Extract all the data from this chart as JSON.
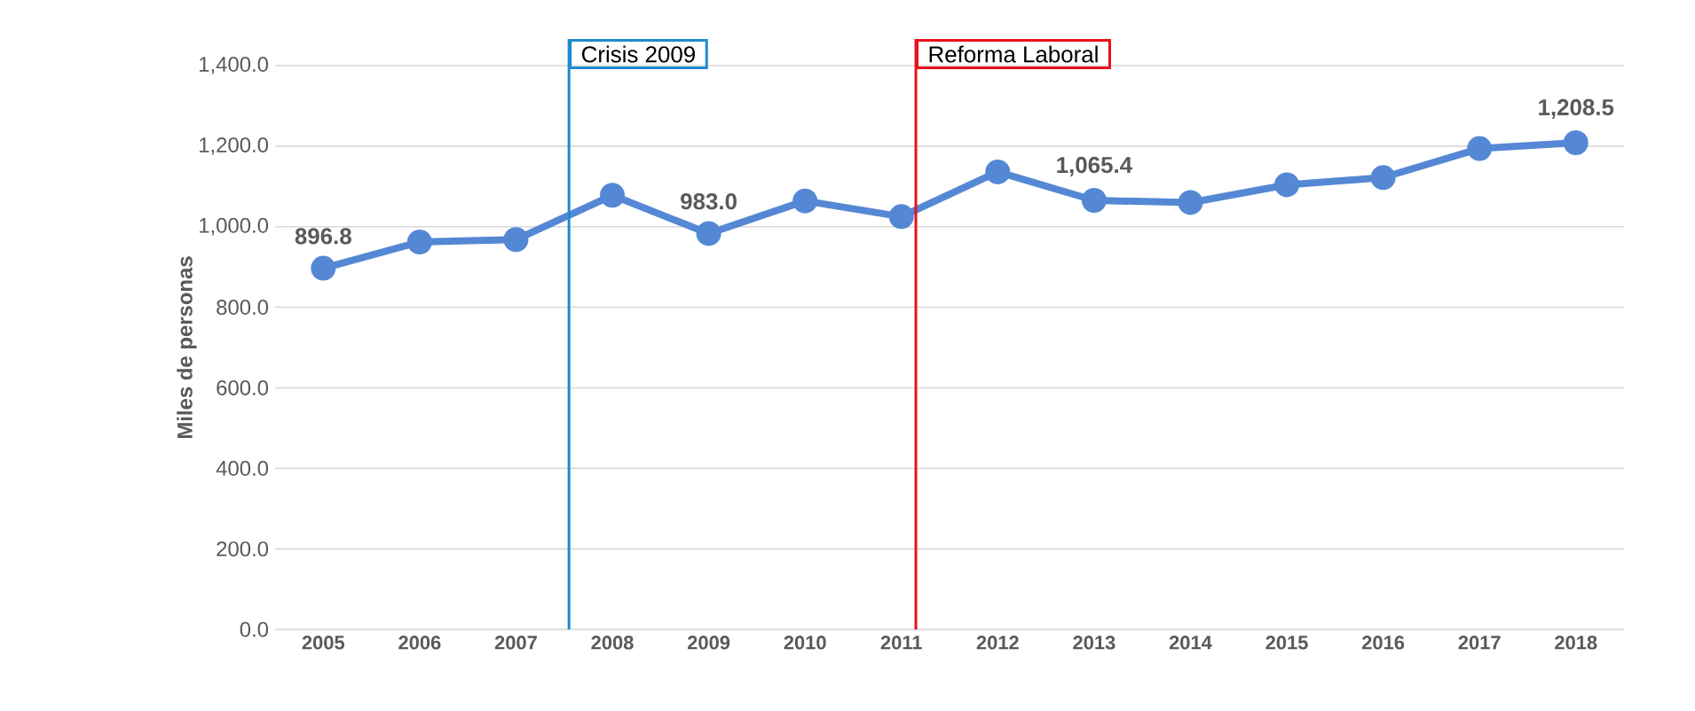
{
  "chart_data": {
    "type": "line",
    "ylabel": "Miles de personas",
    "x": [
      2005,
      2006,
      2007,
      2008,
      2009,
      2010,
      2011,
      2012,
      2013,
      2014,
      2015,
      2016,
      2017,
      2018
    ],
    "series": [
      {
        "color": "#5588d4",
        "values": [
          896.8,
          962,
          968,
          1078,
          983.0,
          1064,
          1025,
          1136,
          1065.4,
          1060,
          1104,
          1122,
          1194,
          1208.5
        ],
        "value_labels": [
          "896.8",
          null,
          null,
          null,
          "983.0",
          null,
          null,
          null,
          "1,065.4",
          null,
          null,
          null,
          null,
          "1,208.5"
        ]
      }
    ],
    "xlim": [
      2004.5,
      2018.5
    ],
    "xticks": [
      2005,
      2006,
      2007,
      2008,
      2009,
      2010,
      2011,
      2012,
      2013,
      2014,
      2015,
      2016,
      2017,
      2018
    ],
    "ylim": [
      0,
      1400
    ],
    "yticks": [
      {
        "value": 0,
        "label": "0.0"
      },
      {
        "value": 200,
        "label": "200.0"
      },
      {
        "value": 400,
        "label": "400.0"
      },
      {
        "value": 600,
        "label": "600.0"
      },
      {
        "value": 800,
        "label": "800.0"
      },
      {
        "value": 1000,
        "label": "1,000.0"
      },
      {
        "value": 1200,
        "label": "1,200.0"
      },
      {
        "value": 1400,
        "label": "1,400.0"
      }
    ],
    "ref_lines": [
      {
        "axis": "x",
        "value": 2007.55,
        "label": "Crisis 2009",
        "color": "#1f8ad0"
      },
      {
        "axis": "x",
        "value": 2011.15,
        "label": "Reforma Laboral",
        "color": "#e8101c"
      }
    ],
    "grid": "y",
    "marker": "circle",
    "line_style": "solid"
  }
}
